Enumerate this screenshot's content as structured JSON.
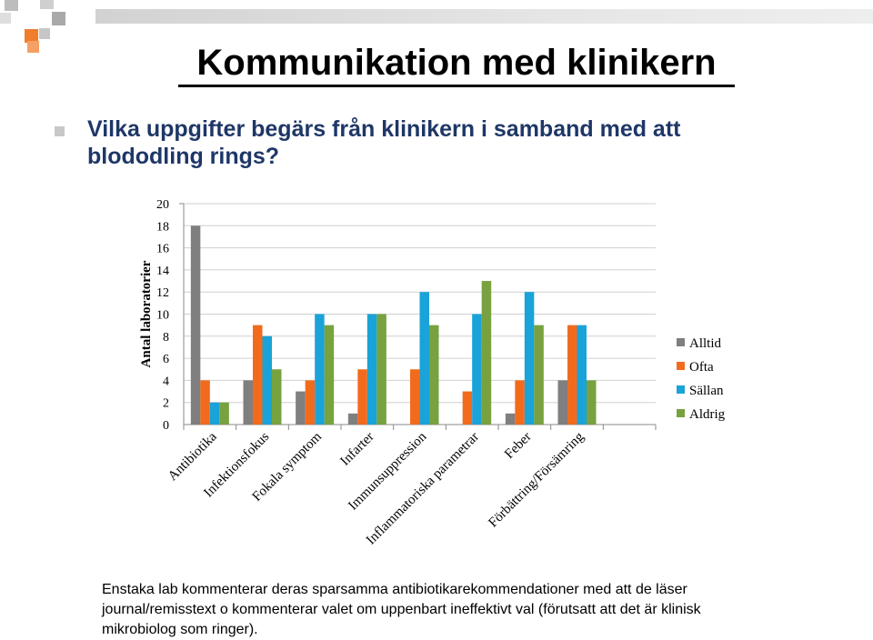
{
  "slide": {
    "title": "Kommunikation med klinikern",
    "question": "Vilka uppgifter begärs från klinikern i samband med att blododling rings?",
    "footnote": "Enstaka lab kommenterar deras sparsamma antibiotikarekommendationer med att de läser journal/remisstext o kommenterar valet om uppenbart ineffektivt val (förutsatt att det är klinisk mikrobiolog som ringer)."
  },
  "colors": {
    "decor_orange": "#f07d2c",
    "decor_gray": "#b4b4b4",
    "question_text": "#1f3767"
  },
  "chart_data": {
    "type": "bar",
    "title": "",
    "xlabel": "",
    "ylabel": "Antal laboratorier",
    "ylim": [
      0,
      20
    ],
    "yticks": [
      0,
      2,
      4,
      6,
      8,
      10,
      12,
      14,
      16,
      18,
      20
    ],
    "grid": true,
    "legend_position": "right",
    "categories": [
      "Antibiotika",
      "Infektionsfokus",
      "Fokala symptom",
      "Infarter",
      "Immunsuppression",
      "Inflammatoriska parametrar",
      "Feber",
      "Förbättring/Försämring"
    ],
    "series": [
      {
        "name": "Alltid",
        "color": "#7f7f7f",
        "values": [
          18,
          4,
          3,
          1,
          0,
          0,
          1,
          4
        ]
      },
      {
        "name": "Ofta",
        "color": "#f26b1d",
        "values": [
          4,
          9,
          4,
          5,
          5,
          3,
          4,
          9
        ]
      },
      {
        "name": "Sällan",
        "color": "#1aa3d9",
        "values": [
          2,
          8,
          10,
          10,
          12,
          10,
          12,
          9
        ]
      },
      {
        "name": "Aldrig",
        "color": "#77a23f",
        "values": [
          2,
          5,
          9,
          10,
          9,
          13,
          9,
          4
        ]
      }
    ]
  }
}
